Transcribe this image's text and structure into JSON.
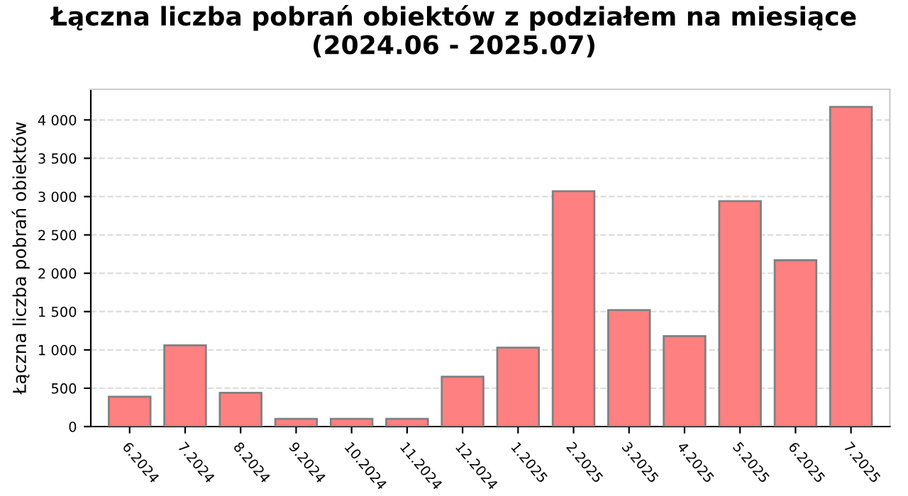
{
  "chart_data": {
    "type": "bar",
    "title": "Łączna liczba pobrań obiektów z podziałem na miesiące\n(2024.06 - 2025.07)",
    "ylabel": "Łączna liczba pobrań obiektów",
    "categories": [
      "6.2024",
      "7.2024",
      "8.2024",
      "9.2024",
      "10.2024",
      "11.2024",
      "12.2024",
      "1.2025",
      "2.2025",
      "3.2025",
      "4.2025",
      "5.2025",
      "6.2025",
      "7.2025"
    ],
    "values": [
      390,
      1060,
      440,
      100,
      100,
      100,
      650,
      1030,
      3070,
      1520,
      1180,
      2940,
      2170,
      4170
    ],
    "color": "#ff8080",
    "ylim": [
      0,
      4400
    ],
    "yticks": [
      {
        "value": 0,
        "label": "0"
      },
      {
        "value": 500,
        "label": "500"
      },
      {
        "value": 1000,
        "label": "1 000"
      },
      {
        "value": 1500,
        "label": "1 500"
      },
      {
        "value": 2000,
        "label": "2 000"
      },
      {
        "value": 2500,
        "label": "2 500"
      },
      {
        "value": 3000,
        "label": "3 000"
      },
      {
        "value": 3500,
        "label": "3 500"
      },
      {
        "value": 4000,
        "label": "4 000"
      }
    ],
    "grid": "y"
  }
}
